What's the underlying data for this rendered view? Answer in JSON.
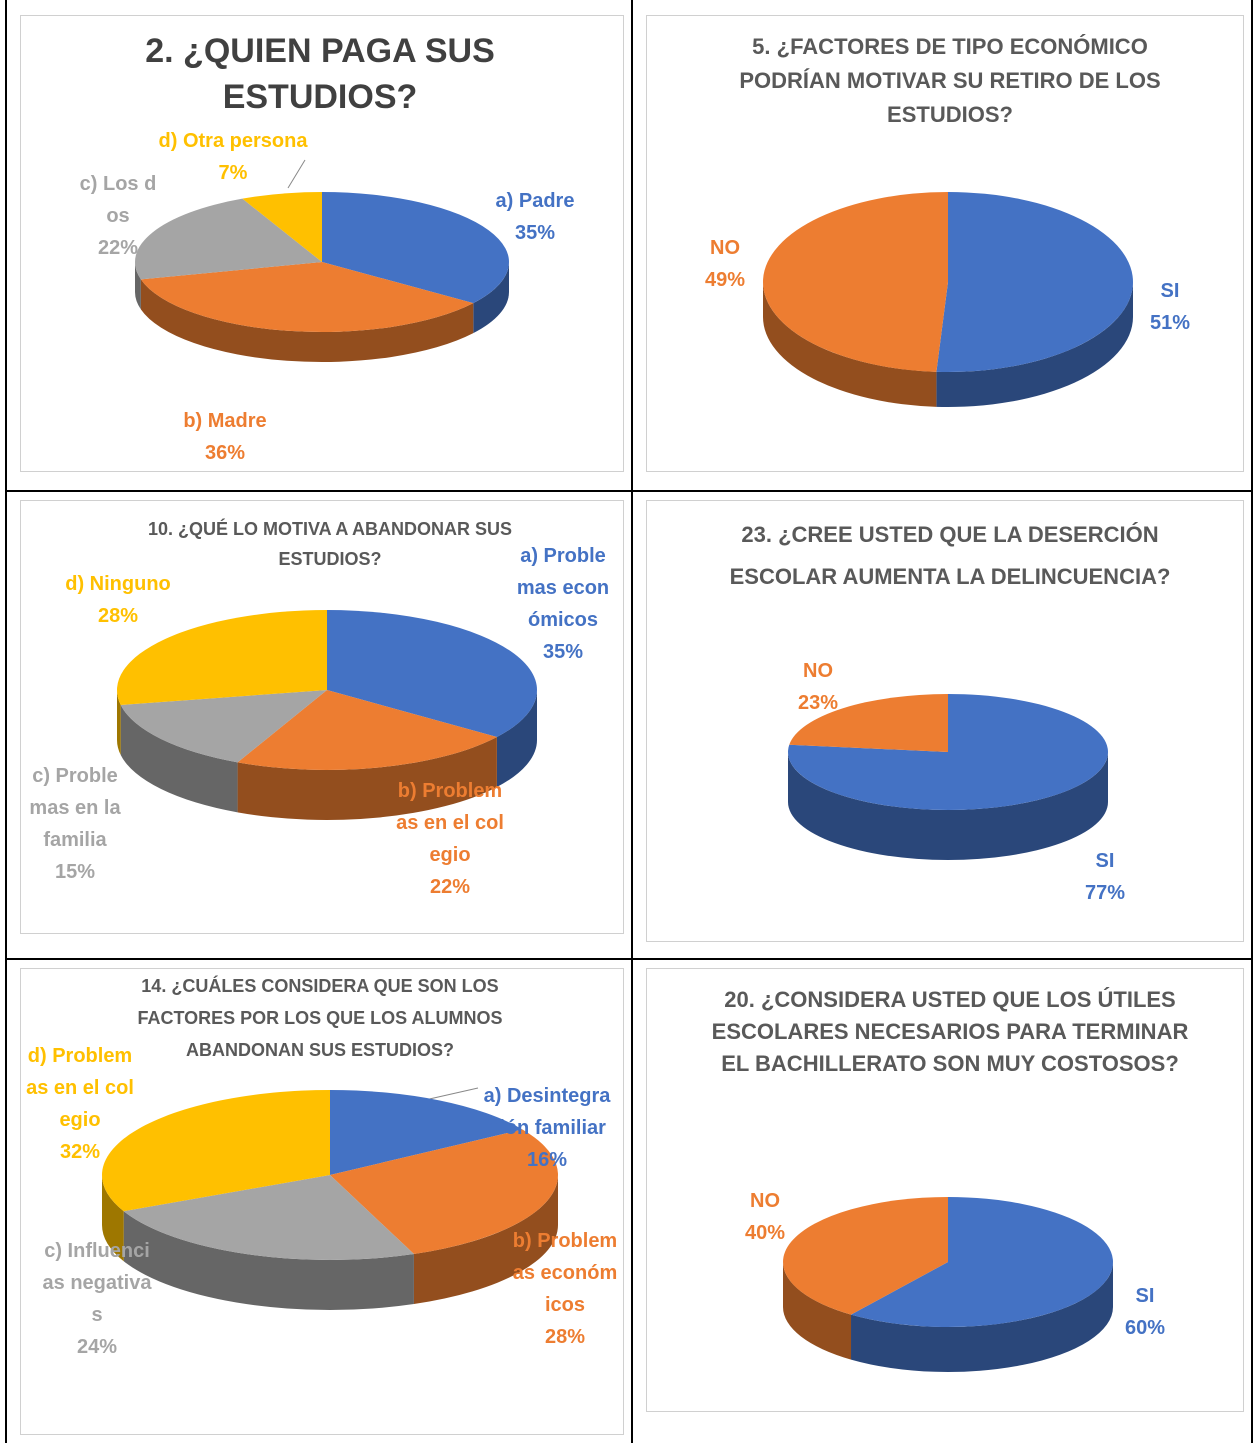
{
  "chart_data": [
    {
      "type": "pie",
      "title": "2. ¿QUIEN PAGA SUS ESTUDIOS?",
      "categories": [
        "a) Padre",
        "b) Madre",
        "c) Los dos",
        "d) Otra persona"
      ],
      "values": [
        35,
        36,
        22,
        7
      ],
      "value_labels": [
        "35%",
        "36%",
        "22%",
        "7%"
      ],
      "colors": [
        "#4472c4",
        "#ed7d31",
        "#a5a5a5",
        "#ffc000"
      ]
    },
    {
      "type": "pie",
      "title": "5. ¿FACTORES DE TIPO ECONÓMICO PODRÍAN MOTIVAR SU RETIRO DE LOS ESTUDIOS?",
      "categories": [
        "SI",
        "NO"
      ],
      "values": [
        51,
        49
      ],
      "value_labels": [
        "51%",
        "49%"
      ],
      "colors": [
        "#4472c4",
        "#ed7d31"
      ]
    },
    {
      "type": "pie",
      "title": "10. ¿QUÉ LO MOTIVA A ABANDONAR SUS ESTUDIOS?",
      "categories": [
        "a) Problemas económicos",
        "b) Problemas en el colegio",
        "c) Problemas en la familia",
        "d) Ninguno"
      ],
      "values": [
        35,
        22,
        15,
        28
      ],
      "value_labels": [
        "35%",
        "22%",
        "15%",
        "28%"
      ],
      "colors": [
        "#4472c4",
        "#ed7d31",
        "#a5a5a5",
        "#ffc000"
      ]
    },
    {
      "type": "pie",
      "title": "23. ¿CREE USTED QUE LA DESERCIÓN ESCOLAR AUMENTA LA DELINCUENCIA?",
      "categories": [
        "SI",
        "NO"
      ],
      "values": [
        77,
        23
      ],
      "value_labels": [
        "77%",
        "23%"
      ],
      "colors": [
        "#4472c4",
        "#ed7d31"
      ]
    },
    {
      "type": "pie",
      "title": "14. ¿CUÁLES CONSIDERA QUE SON LOS FACTORES POR LOS QUE LOS ALUMNOS ABANDONAN SUS ESTUDIOS?",
      "categories": [
        "a) Desintegración familiar",
        "b) Problemas económicos",
        "c) Influencias negativas",
        "d) Problemas en el colegio"
      ],
      "values": [
        16,
        28,
        24,
        32
      ],
      "value_labels": [
        "16%",
        "28%",
        "24%",
        "32%"
      ],
      "colors": [
        "#4472c4",
        "#ed7d31",
        "#a5a5a5",
        "#ffc000"
      ]
    },
    {
      "type": "pie",
      "title": "20. ¿CONSIDERA USTED QUE LOS ÚTILES ESCOLARES NECESARIOS PARA TERMINAR EL BACHILLERATO SON MUY COSTOSOS?",
      "categories": [
        "SI",
        "NO"
      ],
      "values": [
        60,
        40
      ],
      "value_labels": [
        "60%",
        "40%"
      ],
      "colors": [
        "#4472c4",
        "#ed7d31"
      ]
    }
  ]
}
